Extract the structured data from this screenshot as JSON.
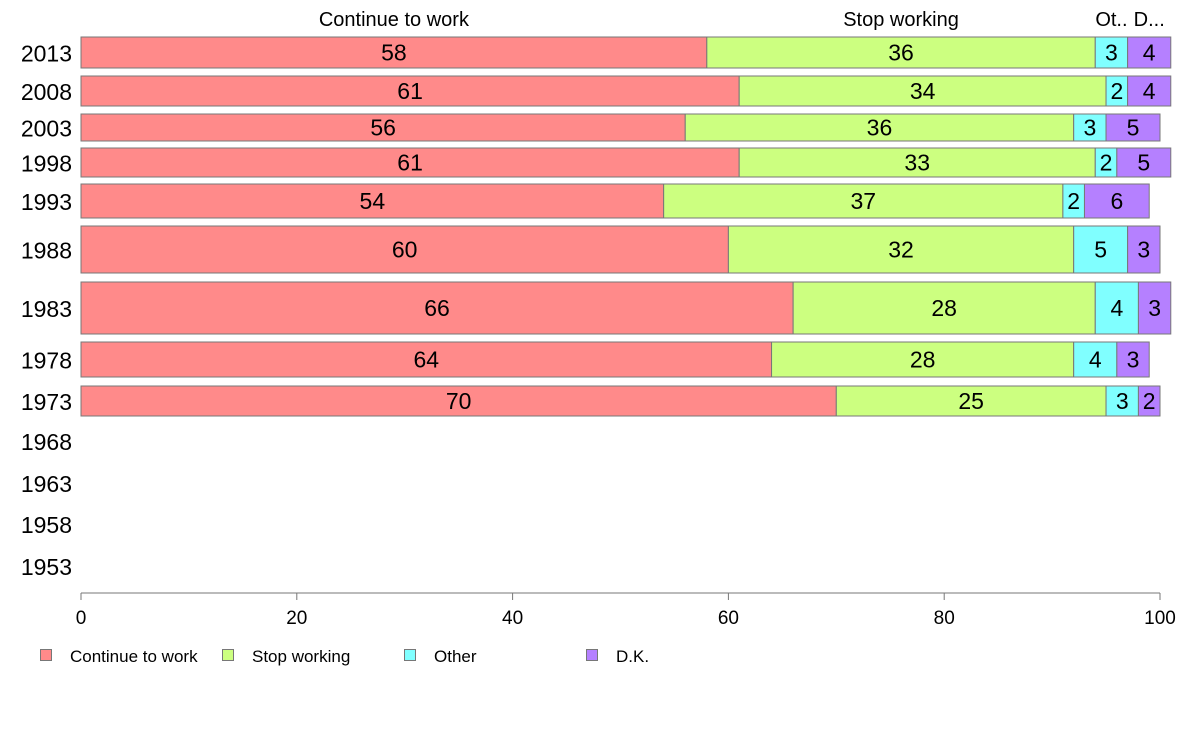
{
  "chart_data": {
    "type": "bar",
    "orientation": "horizontal",
    "stacked": true,
    "categories": [
      "2013",
      "2008",
      "2003",
      "1998",
      "1993",
      "1988",
      "1983",
      "1978",
      "1973",
      "1968",
      "1963",
      "1958",
      "1953"
    ],
    "series": [
      {
        "name": "Continue to work",
        "color": "#ff8a8a",
        "values": [
          58,
          61,
          56,
          61,
          54,
          60,
          66,
          64,
          70,
          null,
          null,
          null,
          null
        ]
      },
      {
        "name": "Stop working",
        "color": "#ccff80",
        "values": [
          36,
          34,
          36,
          33,
          37,
          32,
          28,
          28,
          25,
          null,
          null,
          null,
          null
        ]
      },
      {
        "name": "Other",
        "color": "#80ffff",
        "values": [
          3,
          2,
          3,
          2,
          2,
          5,
          4,
          4,
          3,
          null,
          null,
          null,
          null
        ]
      },
      {
        "name": "D.K.",
        "color": "#b580ff",
        "values": [
          4,
          4,
          5,
          5,
          6,
          3,
          3,
          3,
          2,
          null,
          null,
          null,
          null
        ]
      }
    ],
    "top_labels": [
      "Continue to work",
      "Stop working",
      "Ot..",
      "D..."
    ],
    "xlim": [
      0,
      100
    ],
    "xticks": [
      0,
      20,
      40,
      60,
      80,
      100
    ],
    "legend_position": "bottom-left",
    "grid": false
  }
}
